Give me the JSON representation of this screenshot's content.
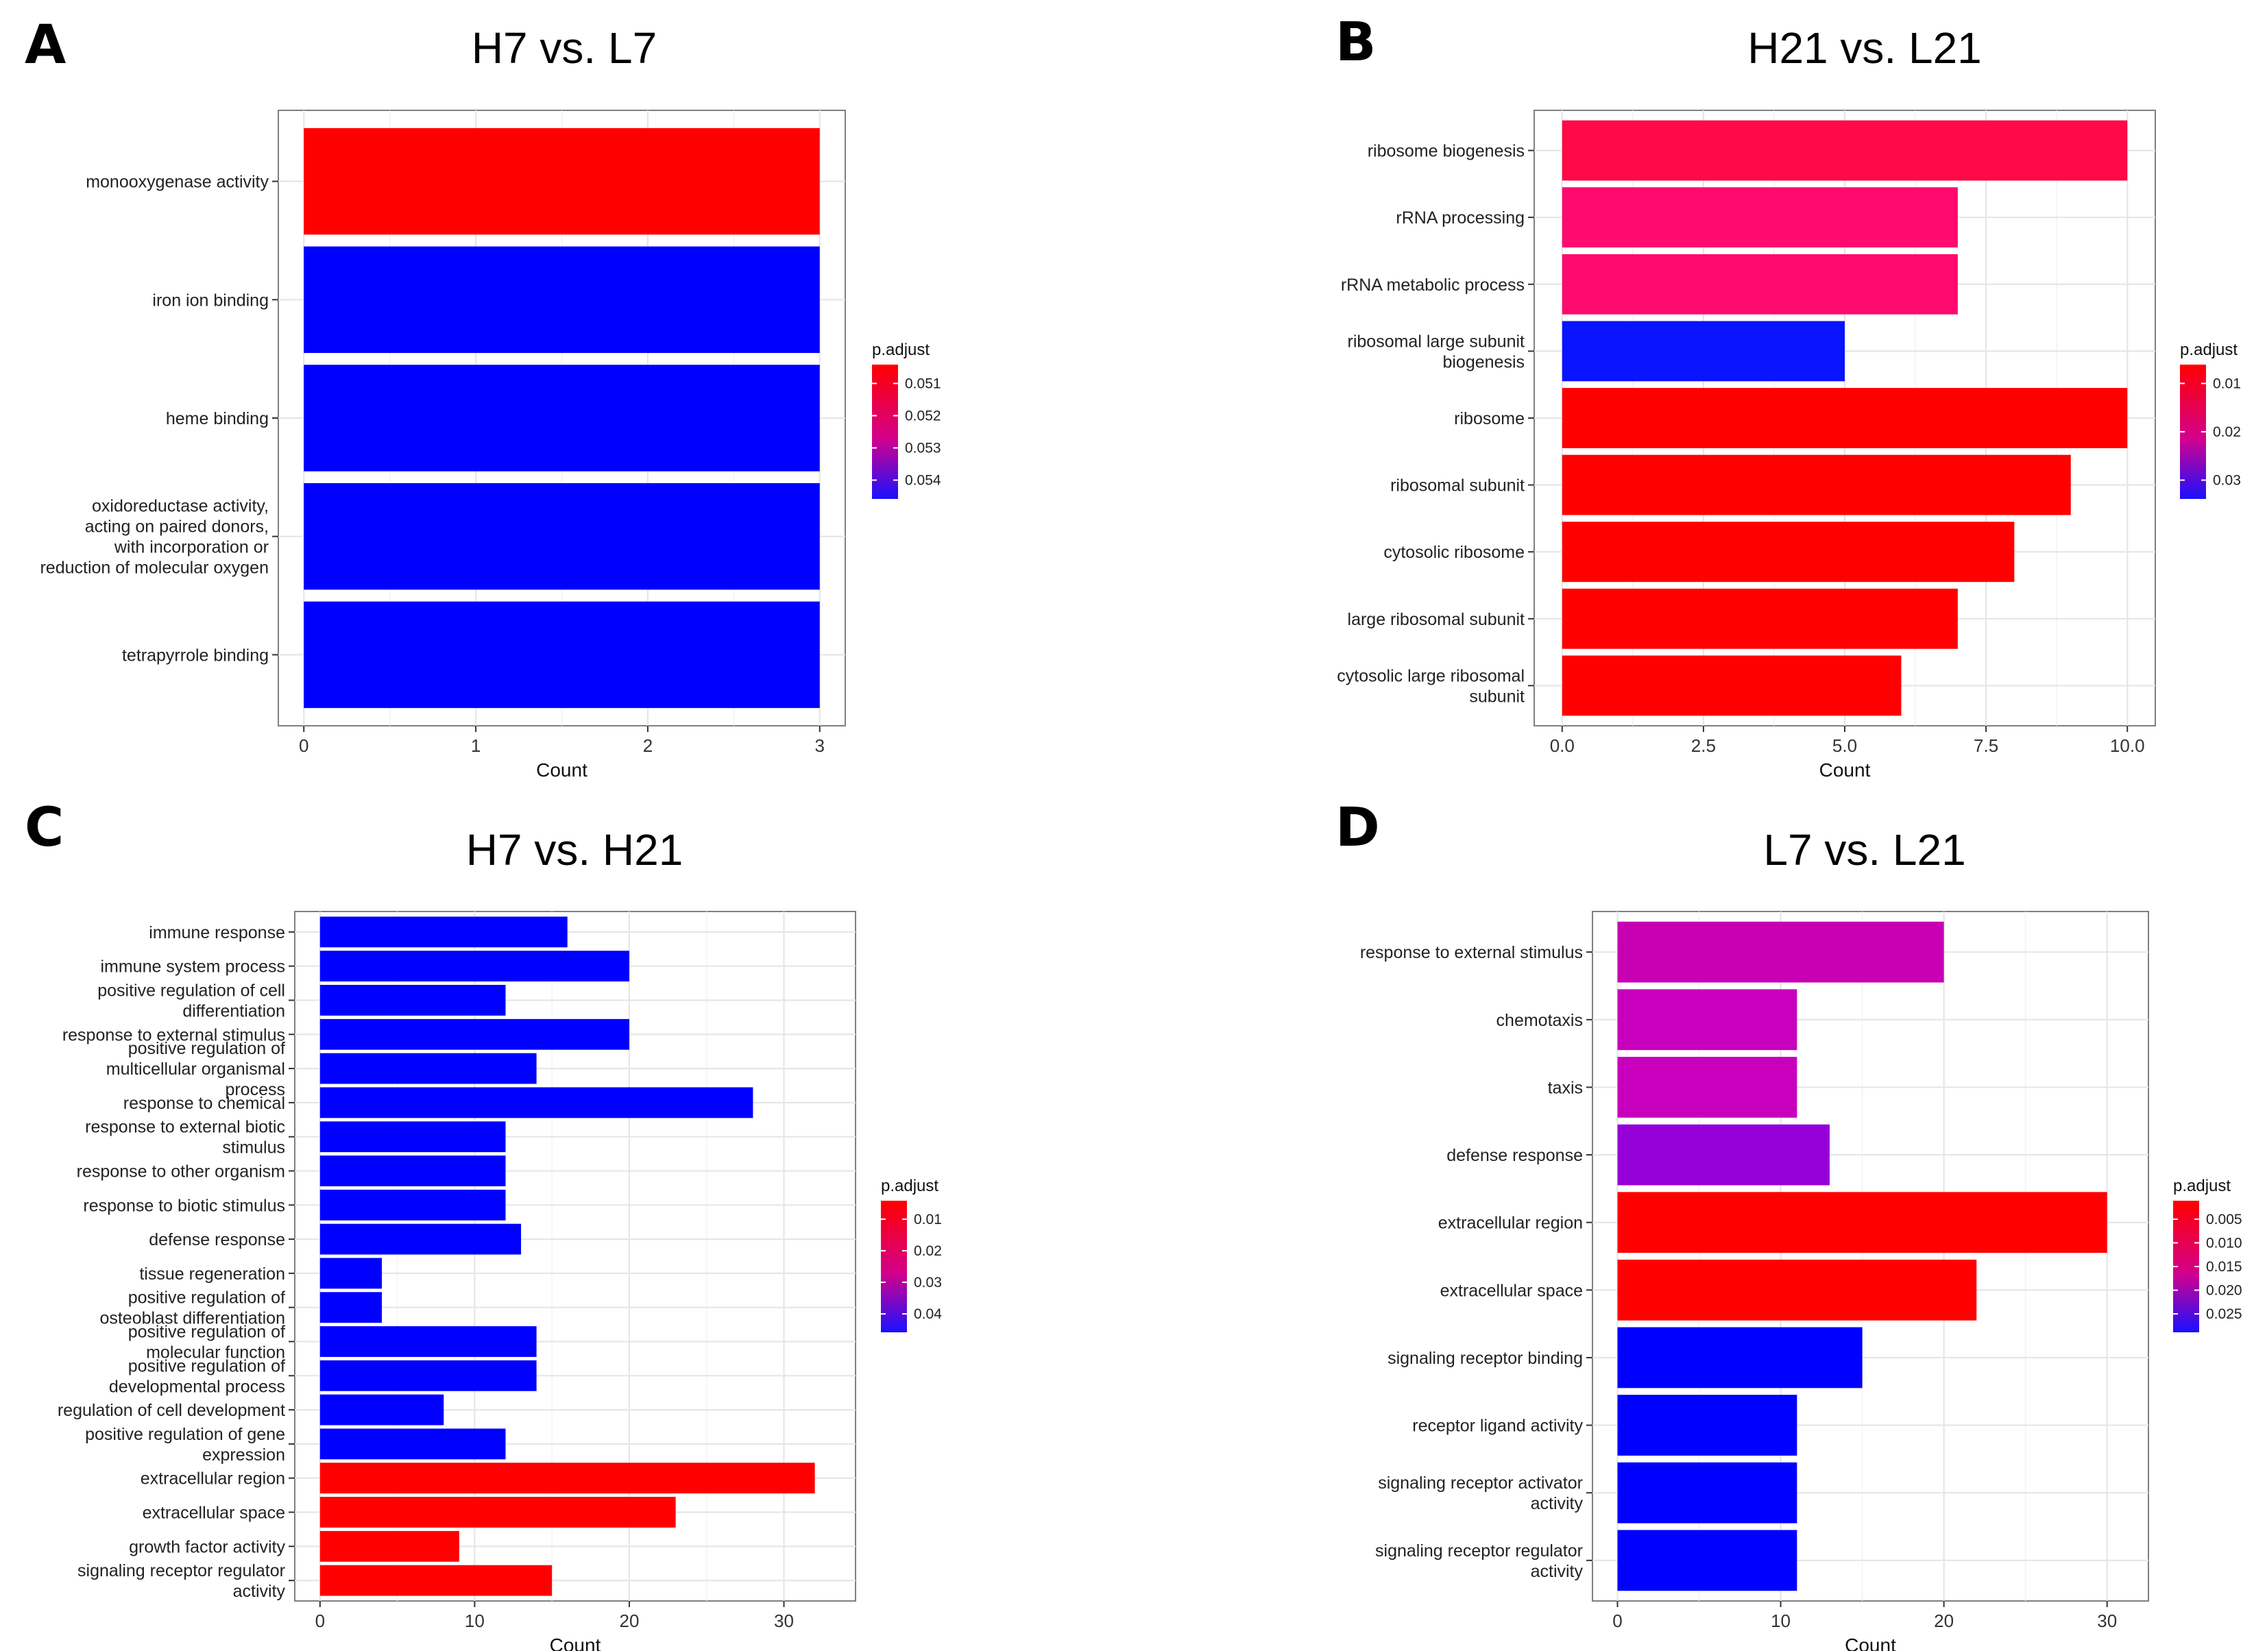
{
  "chart_data": [
    {
      "panel": "A",
      "type": "bar",
      "orientation": "horizontal",
      "title": "H7 vs. L7",
      "xlabel": "Count",
      "ylabel": "",
      "xlim": [
        0,
        3
      ],
      "xticks": [
        "0",
        "1",
        "2",
        "3"
      ],
      "xtick_values": [
        0,
        1,
        2,
        3
      ],
      "categories": [
        "monooxygenase activity",
        "iron ion binding",
        "heme binding",
        "oxidoreductase activity,\nacting on paired donors,\nwith incorporation or\nreduction of molecular oxygen",
        "tetrapyrrole binding"
      ],
      "values": [
        3,
        3,
        3,
        3,
        3
      ],
      "colors": [
        "#ff0000",
        "#0000ff",
        "#0000ff",
        "#0000ff",
        "#0000ff"
      ],
      "legend": {
        "title": "p.adjust",
        "ticks": [
          "0.051",
          "0.052",
          "0.053",
          "0.054"
        ],
        "position": "right"
      }
    },
    {
      "panel": "B",
      "type": "bar",
      "orientation": "horizontal",
      "title": "H21 vs. L21",
      "xlabel": "Count",
      "ylabel": "",
      "xlim": [
        0,
        10
      ],
      "xticks": [
        "0.0",
        "2.5",
        "5.0",
        "7.5",
        "10.0"
      ],
      "xtick_values": [
        0,
        2.5,
        5,
        7.5,
        10
      ],
      "categories": [
        "ribosome biogenesis",
        "rRNA processing",
        "rRNA metabolic process",
        "ribosomal large subunit\nbiogenesis",
        "ribosome",
        "ribosomal subunit",
        "cytosolic ribosome",
        "large ribosomal subunit",
        "cytosolic large ribosomal\nsubunit"
      ],
      "values": [
        10,
        7,
        7,
        5,
        10,
        9,
        8,
        7,
        6
      ],
      "colors": [
        "#ff0a46",
        "#ff0a6e",
        "#ff0a6e",
        "#0a14ff",
        "#ff0000",
        "#ff0000",
        "#ff0000",
        "#ff0000",
        "#ff0000"
      ],
      "legend": {
        "title": "p.adjust",
        "ticks": [
          "0.01",
          "0.02",
          "0.03"
        ],
        "position": "right"
      }
    },
    {
      "panel": "C",
      "type": "bar",
      "orientation": "horizontal",
      "title": "H7 vs. H21",
      "xlabel": "Count",
      "ylabel": "",
      "xlim": [
        0,
        33
      ],
      "xticks": [
        "0",
        "10",
        "20",
        "30"
      ],
      "xtick_values": [
        0,
        10,
        20,
        30
      ],
      "categories": [
        "immune response",
        "immune system process",
        "positive regulation of cell\ndifferentiation",
        "response to external stimulus",
        "positive regulation of\nmulticellular organismal\nprocess",
        "response to chemical",
        "response to external biotic\nstimulus",
        "response to other organism",
        "response to biotic stimulus",
        "defense response",
        "tissue regeneration",
        "positive regulation of\nosteoblast differentiation",
        "positive regulation of\nmolecular function",
        "positive regulation of\ndevelopmental process",
        "regulation of cell development",
        "positive regulation of gene\nexpression",
        "extracellular region",
        "extracellular space",
        "growth factor activity",
        "signaling receptor regulator\nactivity"
      ],
      "values": [
        16,
        20,
        12,
        20,
        14,
        28,
        12,
        12,
        12,
        13,
        4,
        4,
        14,
        14,
        8,
        12,
        32,
        23,
        9,
        15
      ],
      "colors": [
        "#0000ff",
        "#0000ff",
        "#0000ff",
        "#0000ff",
        "#0000ff",
        "#0000ff",
        "#0000ff",
        "#0000ff",
        "#0000ff",
        "#0000ff",
        "#0000ff",
        "#0000ff",
        "#0000ff",
        "#0000ff",
        "#0000ff",
        "#0000ff",
        "#ff0000",
        "#ff0000",
        "#ff0000",
        "#ff0000"
      ],
      "legend": {
        "title": "p.adjust",
        "ticks": [
          "0.01",
          "0.02",
          "0.03",
          "0.04"
        ],
        "position": "right"
      }
    },
    {
      "panel": "D",
      "type": "bar",
      "orientation": "horizontal",
      "title": "L7 vs. L21",
      "xlabel": "Count",
      "ylabel": "",
      "xlim": [
        0,
        31
      ],
      "xticks": [
        "0",
        "10",
        "20",
        "30"
      ],
      "xtick_values": [
        0,
        10,
        20,
        30
      ],
      "categories": [
        "response to external stimulus",
        "chemotaxis",
        "taxis",
        "defense response",
        "extracellular region",
        "extracellular space",
        "signaling receptor binding",
        "receptor ligand activity",
        "signaling receptor activator\nactivity",
        "signaling receptor regulator\nactivity"
      ],
      "values": [
        20,
        11,
        11,
        13,
        30,
        22,
        15,
        11,
        11,
        11
      ],
      "colors": [
        "#c800b4",
        "#c800be",
        "#c800be",
        "#9600d8",
        "#ff0000",
        "#ff0000",
        "#0000ff",
        "#0000ff",
        "#0000ff",
        "#0000ff"
      ],
      "legend": {
        "title": "p.adjust",
        "ticks": [
          "0.005",
          "0.010",
          "0.015",
          "0.020",
          "0.025"
        ],
        "position": "right"
      }
    }
  ]
}
